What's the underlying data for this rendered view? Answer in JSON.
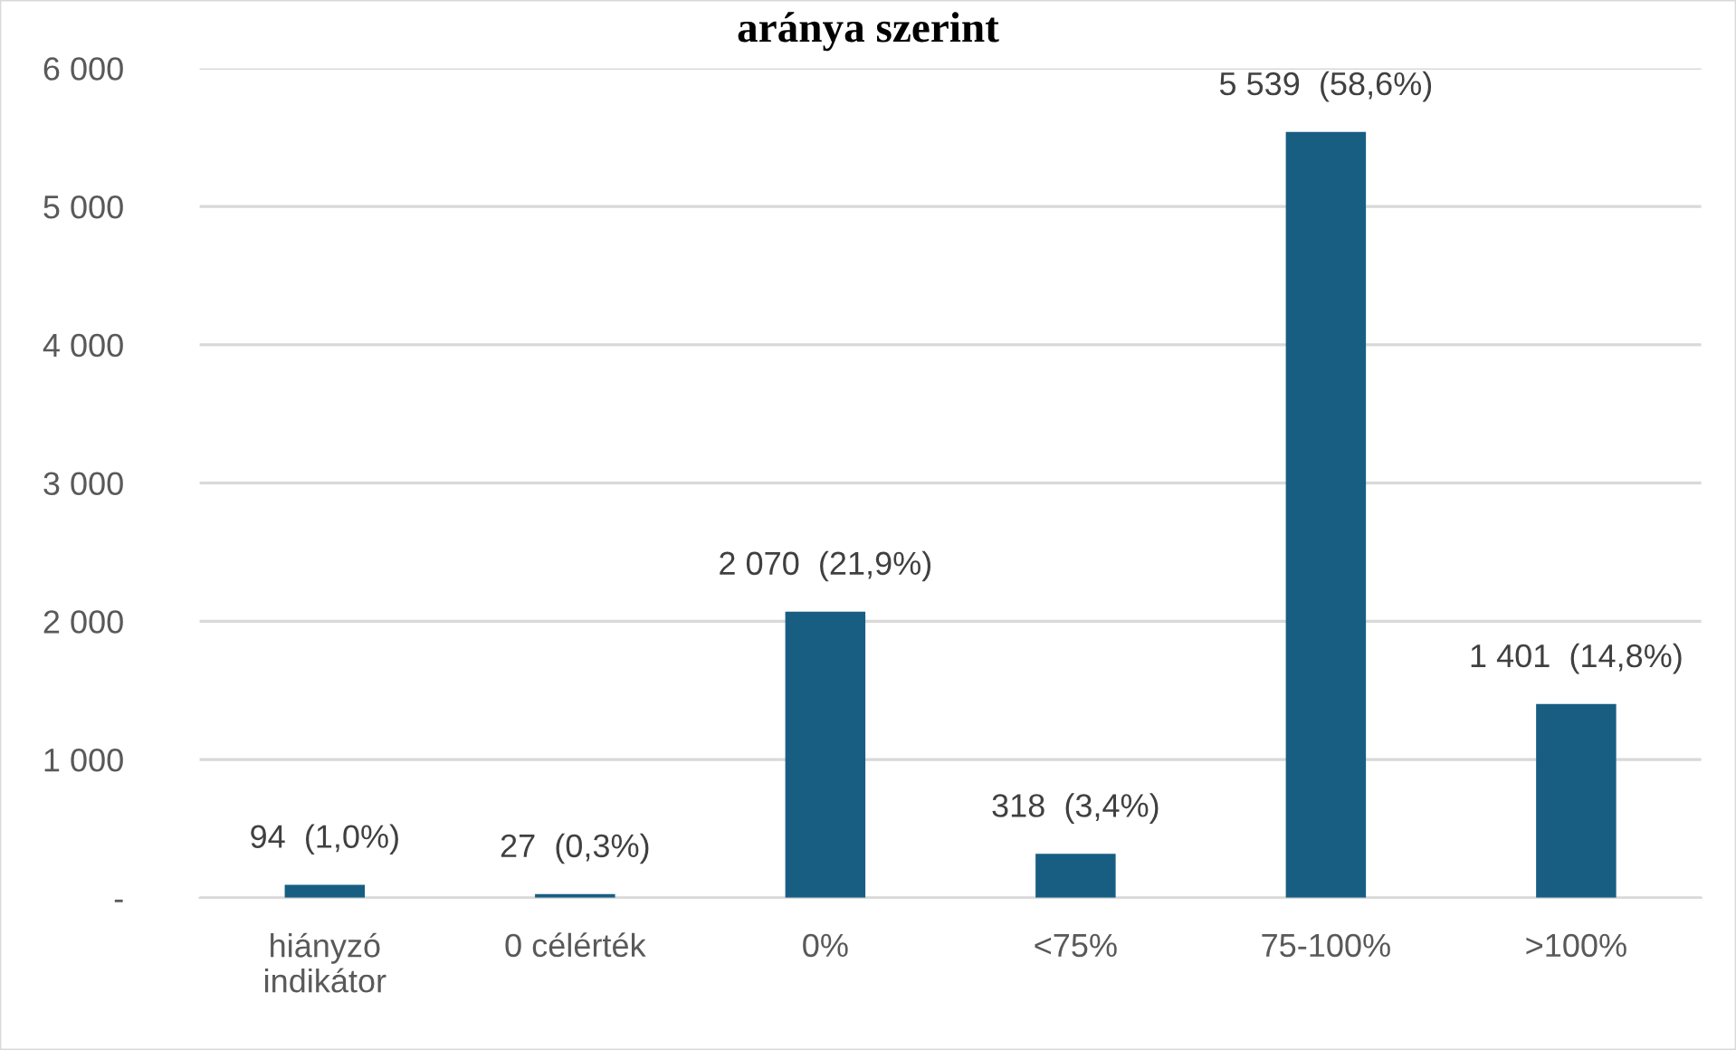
{
  "chart_data": {
    "type": "bar",
    "title": "aránya szerint",
    "categories": [
      "hiányzó\nindikátor",
      "0 célérték",
      "0%",
      "<75%",
      "75-100%",
      ">100%"
    ],
    "values": [
      94,
      27,
      2070,
      318,
      5539,
      1401
    ],
    "value_labels": [
      "94  (1,0%)",
      "27  (0,3%)",
      "2 070  (21,9%)",
      "318  (3,4%)",
      "5 539  (58,6%)",
      "1 401  (14,8%)"
    ],
    "color": "#175e82",
    "ylim": [
      0,
      6000
    ],
    "yticks": [
      {
        "value": 0,
        "label": "-"
      },
      {
        "value": 1000,
        "label": "1 000"
      },
      {
        "value": 2000,
        "label": "2 000"
      },
      {
        "value": 3000,
        "label": "3 000"
      },
      {
        "value": 4000,
        "label": "4 000"
      },
      {
        "value": 5000,
        "label": "5 000"
      },
      {
        "value": 6000,
        "label": "6 000"
      }
    ],
    "grid": "y"
  }
}
